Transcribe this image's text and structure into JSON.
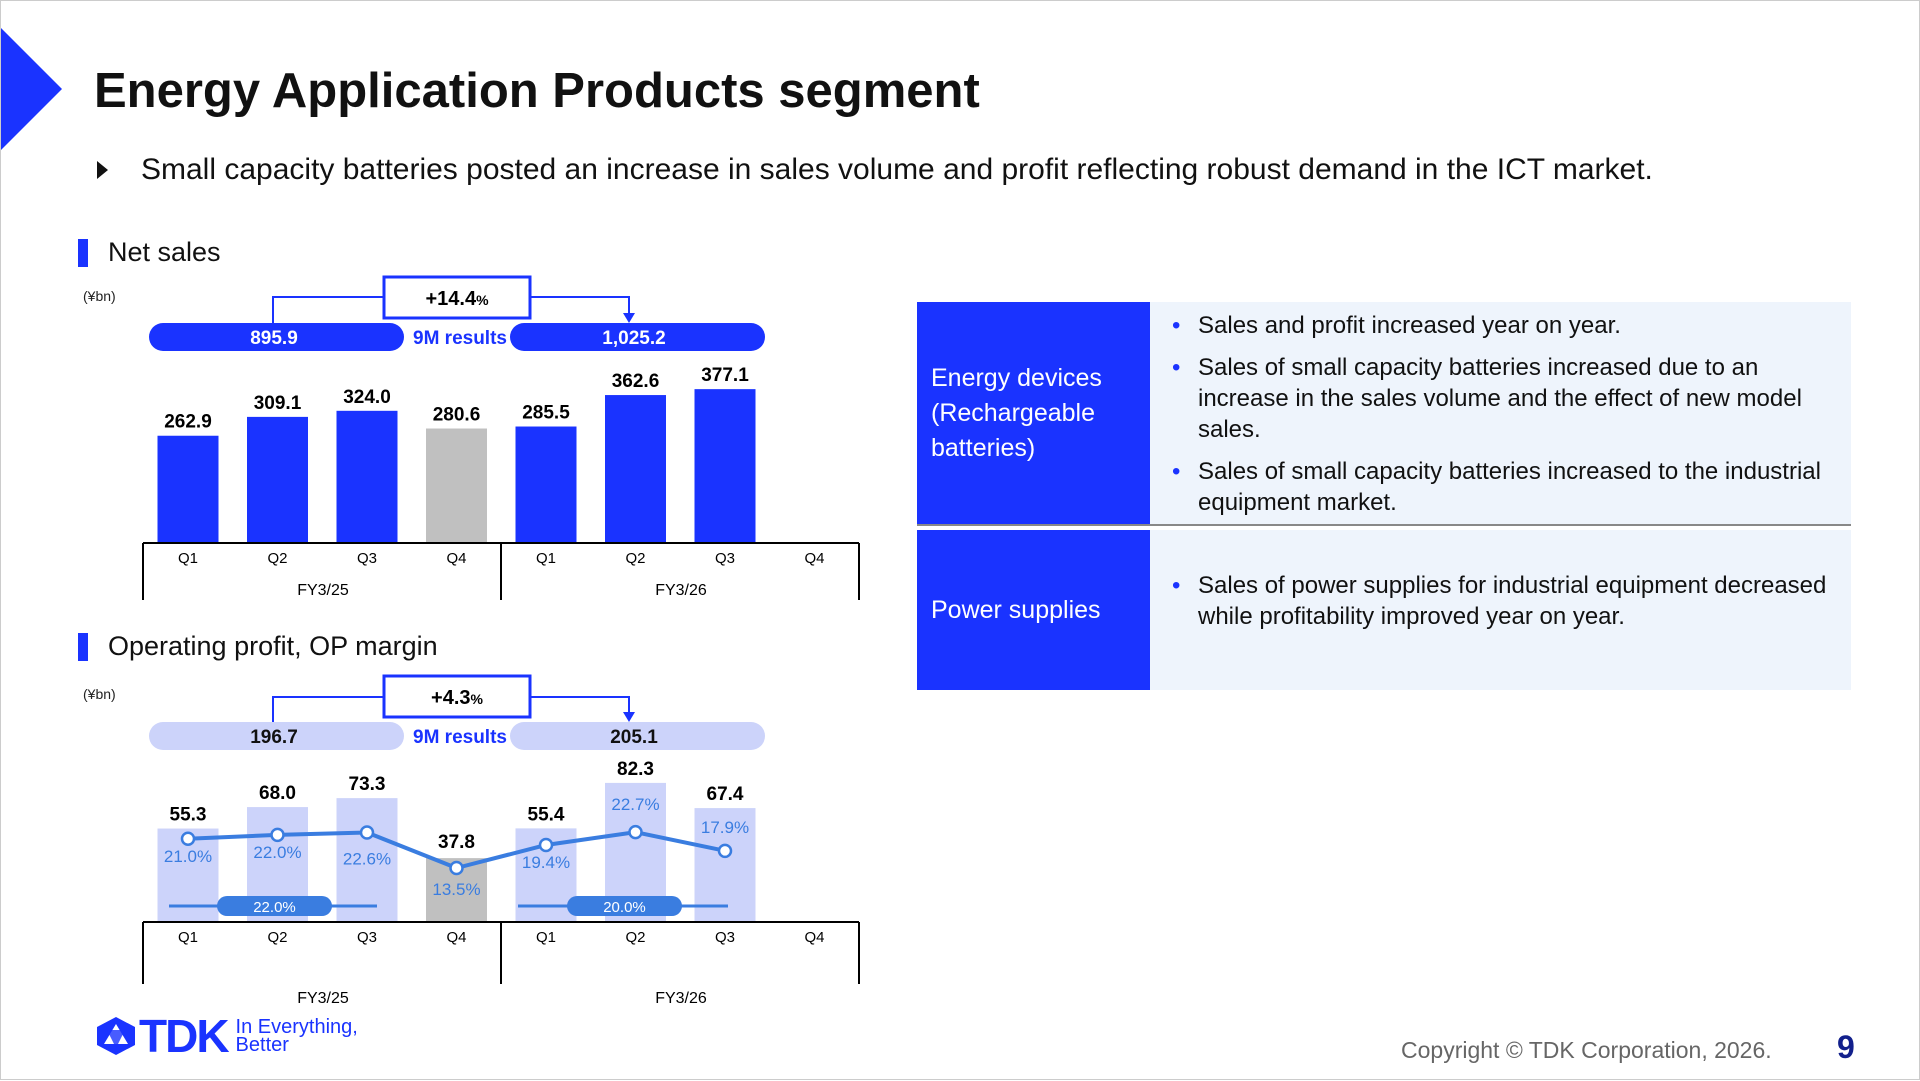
{
  "title": "Energy Application Products segment",
  "lead": "Small capacity batteries posted an increase in sales volume and profit reflecting robust demand in the ICT market.",
  "colors": {
    "brand": "#1a33ff",
    "light": "#ccd3fa",
    "margin_line": "#3a7de0",
    "forecast_gray": "#c0c0c0"
  },
  "chart_data": [
    {
      "type": "bar",
      "title": "Net sales",
      "unit": "(¥bn)",
      "categories": [
        "Q1",
        "Q2",
        "Q3",
        "Q4",
        "Q1",
        "Q2",
        "Q3",
        "Q4"
      ],
      "groups": [
        "FY3/25",
        "FY3/26"
      ],
      "values": [
        262.9,
        309.1,
        324.0,
        280.6,
        285.5,
        362.6,
        377.1,
        null
      ],
      "labels": [
        "262.9",
        "309.1",
        "324.0",
        "280.6",
        "285.5",
        "362.6",
        "377.1",
        ""
      ],
      "gray_index": 3,
      "nine_month": {
        "label": "9M results",
        "prev": "895.9",
        "curr": "1,025.2",
        "change": "+14.4",
        "pct": "%"
      }
    },
    {
      "type": "bar+line",
      "title": "Operating profit, OP margin",
      "unit": "(¥bn)",
      "categories": [
        "Q1",
        "Q2",
        "Q3",
        "Q4",
        "Q1",
        "Q2",
        "Q3",
        "Q4"
      ],
      "groups": [
        "FY3/25",
        "FY3/26"
      ],
      "values": [
        55.3,
        68.0,
        73.3,
        37.8,
        55.4,
        82.3,
        67.4,
        null
      ],
      "labels": [
        "55.3",
        "68.0",
        "73.3",
        "37.8",
        "55.4",
        "82.3",
        "67.4",
        ""
      ],
      "margins": [
        21.0,
        22.0,
        22.6,
        13.5,
        19.4,
        22.7,
        17.9,
        null
      ],
      "margin_labels": [
        "21.0%",
        "22.0%",
        "22.6%",
        "13.5%",
        "19.4%",
        "22.7%",
        "17.9%",
        ""
      ],
      "avg_margins": [
        "22.0%",
        "20.0%"
      ],
      "gray_index": 3,
      "nine_month": {
        "label": "9M results",
        "prev": "196.7",
        "curr": "205.1",
        "change": "+4.3",
        "pct": "%"
      }
    }
  ],
  "table": [
    {
      "head": "Energy devices (Rechargeable batteries)",
      "items": [
        "Sales and profit increased year on year.",
        "Sales of small capacity batteries increased due to an increase in the sales volume and the effect of new model sales.",
        "Sales of small capacity batteries increased to the industrial equipment market."
      ]
    },
    {
      "head": "Power supplies",
      "items": [
        "Sales of power supplies for industrial equipment decreased while profitability improved year on year."
      ]
    }
  ],
  "logo": {
    "brand": "TDK",
    "tagline": "In Everything, Better"
  },
  "footer": {
    "copyright": "Copyright  © TDK Corporation, 2026.",
    "page": "9"
  }
}
